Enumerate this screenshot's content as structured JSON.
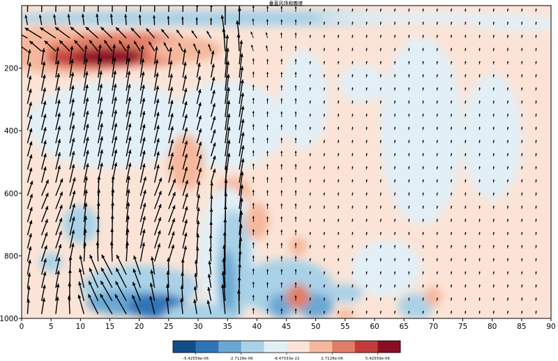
{
  "chart_data": {
    "type": "heatmap",
    "title": "垂直风场和散度",
    "xlabel": "",
    "ylabel": "",
    "x_range": [
      0,
      90
    ],
    "y_range": [
      1000,
      0
    ],
    "y_axis_inverted": true,
    "x_ticks": [
      "0",
      "5",
      "10",
      "15",
      "20",
      "25",
      "30",
      "35",
      "40",
      "45",
      "50",
      "55",
      "60",
      "65",
      "70",
      "75",
      "80",
      "85",
      "90"
    ],
    "y_ticks": [
      "200",
      "400",
      "600",
      "800",
      "1000"
    ],
    "overlay": "vector-arrows",
    "colormap": "RdBu_r",
    "colorbar": {
      "levels": 10,
      "colors": [
        "#0f4e8a",
        "#2f74b8",
        "#6aa7d3",
        "#a9d1e7",
        "#e2eff6",
        "#fbe4d7",
        "#f5b89c",
        "#e27e66",
        "#c33c3a",
        "#8a0c25"
      ],
      "labels": [
        "-5.42559e-06",
        "-2.7128e-06",
        "-8.47033e-22",
        "2.7128e-06",
        "5.42559e-06"
      ],
      "label_values": [
        -5.42559e-06,
        -2.7128e-06,
        -8.47033e-22,
        2.7128e-06,
        5.42559e-06
      ]
    }
  }
}
